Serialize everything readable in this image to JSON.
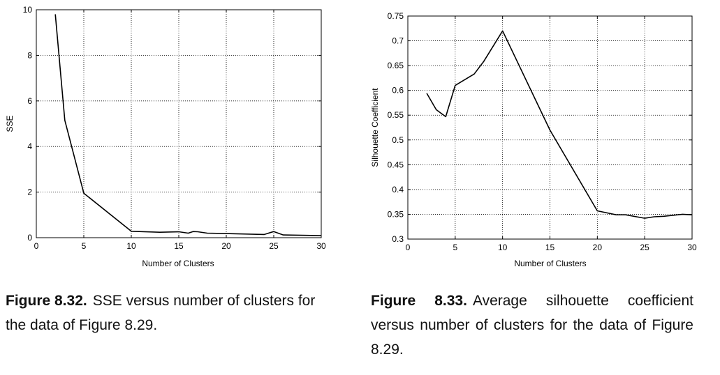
{
  "chart_data": [
    {
      "type": "line",
      "title": "",
      "xlabel": "Number of Clusters",
      "ylabel": "SSE",
      "xlim": [
        0,
        30
      ],
      "ylim": [
        0,
        10
      ],
      "xticks": [
        0,
        5,
        10,
        15,
        20,
        25,
        30
      ],
      "yticks": [
        0,
        2,
        4,
        6,
        8,
        10
      ],
      "ytick_labels": [
        "0",
        "2",
        "4",
        "6",
        "8",
        "10"
      ],
      "grid": true,
      "series": [
        {
          "x": [
            2,
            3,
            5,
            10,
            13,
            15,
            16,
            16.5,
            17,
            18,
            20,
            24,
            25,
            26,
            30
          ],
          "y": [
            9.8,
            5.15,
            1.95,
            0.28,
            0.24,
            0.26,
            0.2,
            0.27,
            0.26,
            0.2,
            0.18,
            0.14,
            0.27,
            0.12,
            0.09
          ]
        }
      ]
    },
    {
      "type": "line",
      "title": "",
      "xlabel": "Number of Clusters",
      "ylabel": "Silhouette Coefficient",
      "xlim": [
        0,
        30
      ],
      "ylim": [
        0.3,
        0.75
      ],
      "xticks": [
        0,
        5,
        10,
        15,
        20,
        25,
        30
      ],
      "yticks": [
        0.3,
        0.35,
        0.4,
        0.45,
        0.5,
        0.55,
        0.6,
        0.65,
        0.7,
        0.75
      ],
      "ytick_labels": [
        "0.3",
        "0.35",
        "0.4",
        "0.45",
        "0.5",
        "0.55",
        "0.6",
        "0.65",
        "0.7",
        "0.75"
      ],
      "grid": true,
      "series": [
        {
          "x": [
            2,
            3,
            4,
            5,
            7,
            8,
            10,
            15,
            20,
            22,
            23,
            25,
            26,
            27,
            29,
            30
          ],
          "y": [
            0.594,
            0.561,
            0.547,
            0.61,
            0.633,
            0.658,
            0.72,
            0.52,
            0.357,
            0.349,
            0.349,
            0.342,
            0.345,
            0.346,
            0.35,
            0.349
          ]
        }
      ]
    }
  ],
  "captions": {
    "left": {
      "number": "Figure 8.32.",
      "text": "SSE versus number of clusters for the data of Figure 8.29."
    },
    "right": {
      "number": "Figure 8.33.",
      "text": "Average silhouette coefficient versus number of clusters for the data of Figure 8.29."
    }
  }
}
